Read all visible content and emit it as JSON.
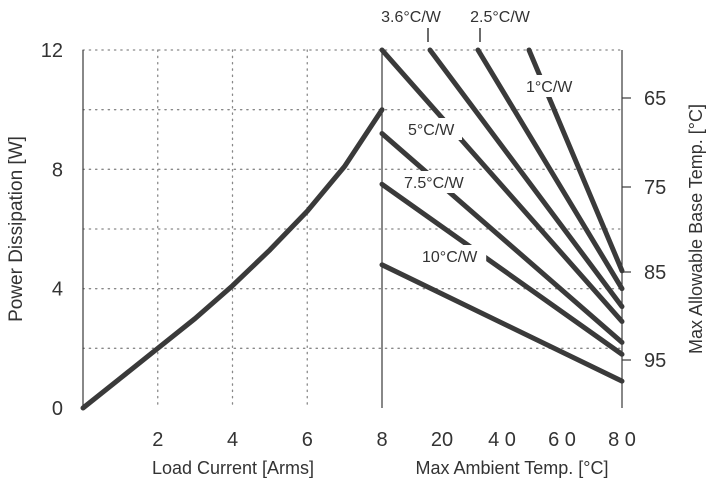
{
  "chart_data": {
    "type": "line",
    "left_panel": {
      "ylabel": "Power Dissipation [W]",
      "xlabel": "Load Current  [Arms]",
      "xlim": [
        0,
        8
      ],
      "ylim": [
        0,
        12
      ],
      "x_ticks": [
        "2",
        "4",
        "6",
        "8"
      ],
      "y_ticks": [
        "0",
        "4",
        "8",
        "12"
      ],
      "series": [
        {
          "points": [
            [
              0,
              0
            ],
            [
              1,
              1.0
            ],
            [
              2,
              2.0
            ],
            [
              3,
              3.0
            ],
            [
              4,
              4.1
            ],
            [
              5,
              5.3
            ],
            [
              6,
              6.6
            ],
            [
              7,
              8.1
            ],
            [
              8,
              10.0
            ]
          ]
        }
      ]
    },
    "right_panel": {
      "xlabel": "Max Ambient Temp. [°C]",
      "right_ylabel": "Max Allowable Base Temp. [°C]",
      "xlim": [
        0,
        80
      ],
      "x_ticks": [
        "20",
        "4 0",
        "6 0",
        "8 0"
      ],
      "right_y_ticks": [
        "65",
        "75",
        "85",
        "95"
      ],
      "series": [
        {
          "label": "1°C/W",
          "label_pos": "inline",
          "points": [
            [
              49,
              12.0
            ],
            [
              80,
              4.6
            ]
          ]
        },
        {
          "label": "2.5°C/W",
          "label_pos": "top",
          "points": [
            [
              32,
              12.0
            ],
            [
              80,
              4.0
            ]
          ]
        },
        {
          "label": "3.6°C/W",
          "label_pos": "top",
          "points": [
            [
              16,
              12.0
            ],
            [
              80,
              3.4
            ]
          ]
        },
        {
          "label": "",
          "points": [
            [
              0,
              12.0
            ],
            [
              80,
              2.9
            ]
          ]
        },
        {
          "label": "5°C/W",
          "label_pos": "inline",
          "points": [
            [
              0,
              9.2
            ],
            [
              80,
              2.2
            ]
          ]
        },
        {
          "label": "7.5°C/W",
          "label_pos": "inline",
          "points": [
            [
              0,
              7.5
            ],
            [
              80,
              1.8
            ]
          ]
        },
        {
          "label": "10°C/W",
          "label_pos": "inline",
          "points": [
            [
              0,
              4.8
            ],
            [
              80,
              0.9
            ]
          ]
        }
      ]
    },
    "grid": "dotted",
    "colors": {
      "line": "#3a3a3a",
      "grid": "#888888",
      "text": "#333333"
    }
  }
}
